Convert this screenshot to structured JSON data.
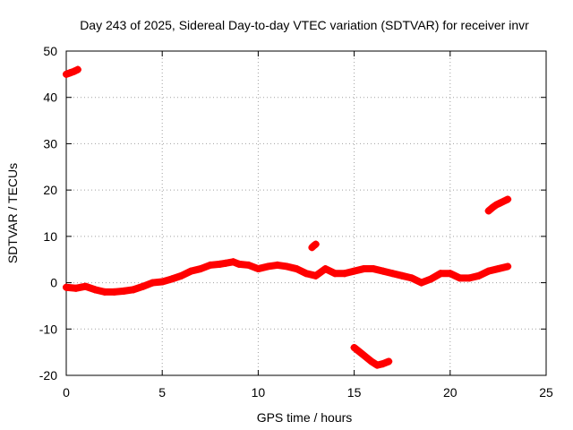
{
  "chart_data": {
    "type": "scatter",
    "title": "Day 243 of 2025, Sidereal Day-to-day VTEC variation (SDTVAR) for receiver invr",
    "xlabel": "GPS time / hours",
    "ylabel": "SDTVAR / TECUs",
    "xlim": [
      0,
      25
    ],
    "ylim": [
      -20,
      50
    ],
    "xticks": [
      0,
      5,
      10,
      15,
      20,
      25
    ],
    "yticks": [
      -20,
      -10,
      0,
      10,
      20,
      30,
      40,
      50
    ],
    "grid": true,
    "marker": "+",
    "color": "#ff0000",
    "series": [
      {
        "name": "main trace",
        "x": [
          0.0,
          0.5,
          1.0,
          1.5,
          2.0,
          2.5,
          3.0,
          3.5,
          4.0,
          4.5,
          5.0,
          5.5,
          6.0,
          6.5,
          7.0,
          7.5,
          8.0,
          8.3,
          8.7,
          9.0,
          9.5,
          10.0,
          10.5,
          11.0,
          11.5,
          12.0,
          12.5,
          13.0,
          13.5,
          14.0,
          14.5,
          15.0,
          15.5,
          16.0,
          16.5,
          17.0,
          17.5,
          18.0,
          18.5,
          19.0,
          19.5,
          20.0,
          20.5,
          21.0,
          21.5,
          22.0,
          22.5,
          23.0
        ],
        "y": [
          -1.0,
          -1.2,
          -0.8,
          -1.5,
          -2.0,
          -2.0,
          -1.8,
          -1.5,
          -0.8,
          0.0,
          0.2,
          0.8,
          1.5,
          2.5,
          3.0,
          3.8,
          4.0,
          4.2,
          4.5,
          4.0,
          3.8,
          3.0,
          3.5,
          3.8,
          3.5,
          3.0,
          2.0,
          1.5,
          3.0,
          2.0,
          2.0,
          2.5,
          3.0,
          3.0,
          2.5,
          2.0,
          1.5,
          1.0,
          0.0,
          0.8,
          2.0,
          2.0,
          1.0,
          1.0,
          1.5,
          2.5,
          3.0,
          3.5
        ]
      },
      {
        "name": "offset cluster a",
        "x": [
          0.0,
          0.2,
          0.4,
          0.6
        ],
        "y": [
          45.0,
          45.3,
          45.6,
          46.0
        ]
      },
      {
        "name": "offset cluster b",
        "x": [
          12.8,
          12.9,
          13.0
        ],
        "y": [
          7.6,
          8.0,
          8.3
        ]
      },
      {
        "name": "offset cluster c",
        "x": [
          15.0,
          15.3,
          15.6,
          15.9,
          16.2,
          16.5,
          16.8
        ],
        "y": [
          -14.0,
          -15.0,
          -16.0,
          -17.0,
          -17.8,
          -17.5,
          -17.0
        ]
      },
      {
        "name": "offset cluster d",
        "x": [
          22.0,
          22.2,
          22.4,
          22.6,
          22.8,
          23.0
        ],
        "y": [
          15.5,
          16.2,
          16.8,
          17.2,
          17.6,
          18.0
        ]
      }
    ]
  }
}
